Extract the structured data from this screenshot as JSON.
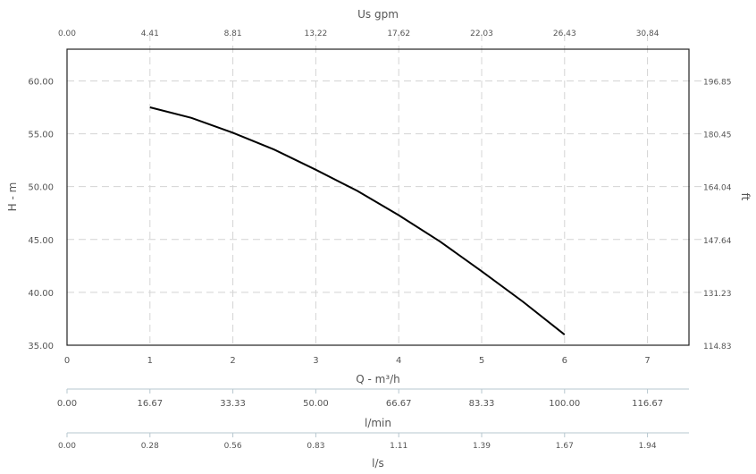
{
  "chart_data": {
    "type": "line",
    "top_axis": {
      "label": "Us gpm",
      "ticks": [
        "0.00",
        "4.41",
        "8.81",
        "13.22",
        "17.62",
        "22.03",
        "26.43",
        "30.84"
      ]
    },
    "x_axis": {
      "label": "Q - m³/h",
      "ticks": [
        "0",
        "1",
        "2",
        "3",
        "4",
        "5",
        "6",
        "7"
      ],
      "range": [
        0,
        7.5
      ]
    },
    "y_axis_left": {
      "label": "H - m",
      "ticks": [
        "35.00",
        "40.00",
        "45.00",
        "50.00",
        "55.00",
        "60.00"
      ],
      "range": [
        35,
        63
      ]
    },
    "y_axis_right": {
      "label": "ft",
      "ticks": [
        "114.83",
        "131.23",
        "147.64",
        "164.04",
        "180.45",
        "196.85"
      ]
    },
    "secondary_axis_1": {
      "label": "l/min",
      "ticks": [
        "0.00",
        "16.67",
        "33.33",
        "50.00",
        "66.67",
        "83.33",
        "100.00",
        "116.67"
      ]
    },
    "secondary_axis_2": {
      "label": "l/s",
      "ticks": [
        "0.00",
        "0.28",
        "0.56",
        "0.83",
        "1.11",
        "1.39",
        "1.67",
        "1.94"
      ]
    },
    "series": [
      {
        "x": [
          1,
          1.5,
          2,
          2.5,
          3,
          3.5,
          4,
          4.5,
          5,
          5.5,
          6
        ],
        "y": [
          57.5,
          56.5,
          55.1,
          53.5,
          51.6,
          49.6,
          47.3,
          44.8,
          42.0,
          39.1,
          36.0
        ]
      }
    ],
    "grid": true,
    "colors": {
      "line": "#000000",
      "grid": "#d4d4d4"
    }
  }
}
